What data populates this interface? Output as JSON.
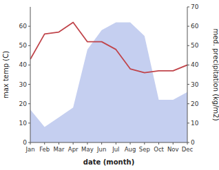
{
  "chart_data": {
    "type": "line",
    "categories": [
      "Jan",
      "Feb",
      "Mar",
      "Apr",
      "May",
      "Jun",
      "Jul",
      "Aug",
      "Sep",
      "Oct",
      "Nov",
      "Dec"
    ],
    "series": [
      {
        "type": "area",
        "axis": "y2",
        "color": "#c5cff0",
        "values": [
          17,
          8,
          13,
          18,
          48,
          58,
          62,
          62,
          55,
          22,
          22,
          26
        ]
      },
      {
        "type": "line",
        "color": "#c0444a",
        "values": [
          43,
          56,
          57,
          62,
          52,
          52,
          48,
          38,
          36,
          37,
          37,
          40
        ]
      }
    ],
    "x_label": "date (month)",
    "y_label": "max temp (C)",
    "y2_label": "med. precipitation (kg/m2)",
    "ylim": [
      0,
      70
    ],
    "yticks": [
      0,
      10,
      20,
      30,
      40,
      50,
      60
    ],
    "y2lim": [
      0,
      70
    ],
    "y2ticks": [
      0,
      10,
      20,
      30,
      40,
      50,
      60,
      70
    ],
    "grid": false
  }
}
